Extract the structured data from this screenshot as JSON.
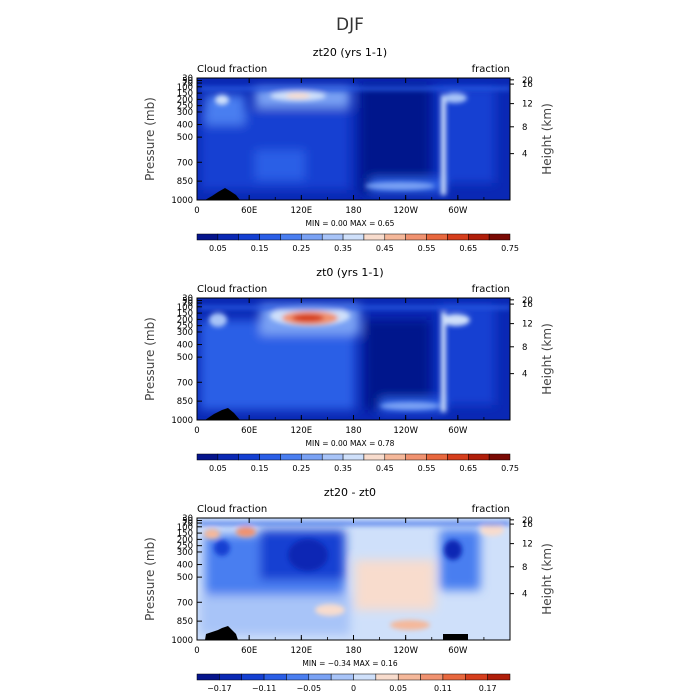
{
  "figure_title": "DJF",
  "chart_data": [
    {
      "type": "heatmap",
      "title": "zt20 (yrs 1-1)",
      "left_string": "Cloud fraction",
      "right_string": "fraction",
      "ylabel": "Pressure (mb)",
      "y2label": "Height (km)",
      "x_ticks": [
        "0",
        "60E",
        "120E",
        "180",
        "120W",
        "60W"
      ],
      "y_ticks": [
        "30",
        "50",
        "70",
        "100",
        "150",
        "200",
        "250",
        "300",
        "400",
        "500",
        "700",
        "850",
        "1000"
      ],
      "y2_ticks": [
        "20",
        "16",
        "12",
        "8",
        "4"
      ],
      "stats": "MIN =    0.00   MAX =    0.65",
      "colorbar_labels": [
        "0.05",
        "0.15",
        "0.25",
        "0.35",
        "0.45",
        "0.55",
        "0.65",
        "0.75"
      ],
      "colorbar_colors": [
        "#05148c",
        "#0a28b4",
        "#1440d2",
        "#2a5ee6",
        "#4a7ef0",
        "#7aa2f4",
        "#a8c4f8",
        "#cfe0fa",
        "#f8dccd",
        "#f5b89a",
        "#f09270",
        "#e8683e",
        "#d63e1c",
        "#b01e0a",
        "#7a0a04"
      ]
    },
    {
      "type": "heatmap",
      "title": "zt0 (yrs 1-1)",
      "left_string": "Cloud fraction",
      "right_string": "fraction",
      "ylabel": "Pressure (mb)",
      "y2label": "Height (km)",
      "x_ticks": [
        "0",
        "60E",
        "120E",
        "180",
        "120W",
        "60W"
      ],
      "y_ticks": [
        "30",
        "50",
        "70",
        "100",
        "150",
        "200",
        "250",
        "300",
        "400",
        "500",
        "700",
        "850",
        "1000"
      ],
      "y2_ticks": [
        "20",
        "16",
        "12",
        "8",
        "4"
      ],
      "stats": "MIN =    0.00   MAX =    0.78",
      "colorbar_labels": [
        "0.05",
        "0.15",
        "0.25",
        "0.35",
        "0.45",
        "0.55",
        "0.65",
        "0.75"
      ],
      "colorbar_colors": [
        "#05148c",
        "#0a28b4",
        "#1440d2",
        "#2a5ee6",
        "#4a7ef0",
        "#7aa2f4",
        "#a8c4f8",
        "#cfe0fa",
        "#f8dccd",
        "#f5b89a",
        "#f09270",
        "#e8683e",
        "#d63e1c",
        "#b01e0a",
        "#7a0a04"
      ]
    },
    {
      "type": "heatmap",
      "title": "zt20 - zt0",
      "left_string": "Cloud fraction",
      "right_string": "fraction",
      "ylabel": "Pressure (mb)",
      "y2label": "Height (km)",
      "x_ticks": [
        "0",
        "60E",
        "120E",
        "180",
        "120W",
        "60W"
      ],
      "y_ticks": [
        "30",
        "50",
        "70",
        "100",
        "150",
        "200",
        "250",
        "300",
        "400",
        "500",
        "700",
        "850",
        "1000"
      ],
      "y2_ticks": [
        "20",
        "16",
        "12",
        "8",
        "4"
      ],
      "stats": "MIN =   −0.34   MAX =    0.16",
      "colorbar_labels": [
        "−0.17",
        "−0.11",
        "−0.05",
        "0",
        "0.05",
        "0.11",
        "0.17"
      ],
      "colorbar_colors": [
        "#05148c",
        "#0a28b4",
        "#1440d2",
        "#2a5ee6",
        "#4a7ef0",
        "#7aa2f4",
        "#a8c4f8",
        "#cfe0fa",
        "#f8dccd",
        "#f5b89a",
        "#f09270",
        "#e8683e",
        "#d63e1c",
        "#b01e0a"
      ]
    }
  ]
}
